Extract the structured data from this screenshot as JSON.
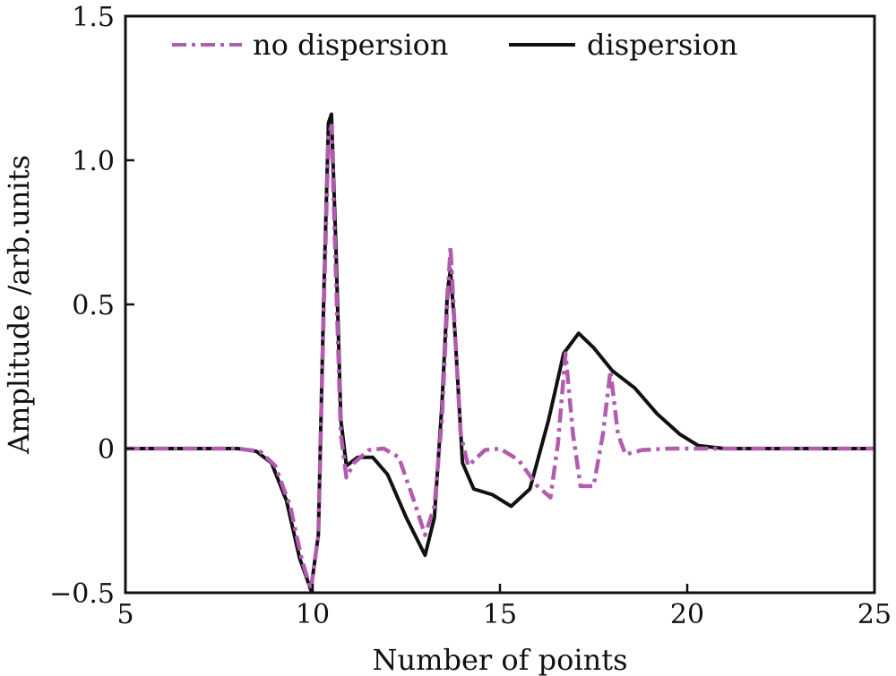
{
  "chart_data": {
    "type": "line",
    "title": "",
    "xlabel": "Number of points",
    "ylabel": "Amplitude /arb.units",
    "xlim": [
      5,
      25
    ],
    "ylim": [
      -0.5,
      1.5
    ],
    "x_ticks": [
      5,
      10,
      15,
      20,
      25
    ],
    "x_tick_labels": [
      "5",
      "10",
      "15",
      "20",
      "25"
    ],
    "y_ticks": [
      -0.5,
      0,
      0.5,
      1.0,
      1.5
    ],
    "y_tick_labels": [
      "−0.5",
      "0",
      "0.5",
      "1.0",
      "1.5"
    ],
    "grid": false,
    "legend_position": "top",
    "series": [
      {
        "name": "no dispersion",
        "color": "#b25cb0",
        "style": "dash-dot",
        "points": [
          [
            5,
            0
          ],
          [
            8.0,
            0
          ],
          [
            8.6,
            -0.01
          ],
          [
            9.0,
            -0.06
          ],
          [
            9.4,
            -0.2
          ],
          [
            9.7,
            -0.38
          ],
          [
            9.95,
            -0.49
          ],
          [
            10.15,
            -0.3
          ],
          [
            10.3,
            0.5
          ],
          [
            10.42,
            1.08
          ],
          [
            10.5,
            1.12
          ],
          [
            10.62,
            0.6
          ],
          [
            10.75,
            0.05
          ],
          [
            10.9,
            -0.1
          ],
          [
            11.1,
            -0.05
          ],
          [
            11.5,
            -0.005
          ],
          [
            11.9,
            0
          ],
          [
            12.3,
            -0.03
          ],
          [
            12.7,
            -0.18
          ],
          [
            13.0,
            -0.3
          ],
          [
            13.25,
            -0.2
          ],
          [
            13.45,
            0.1
          ],
          [
            13.6,
            0.52
          ],
          [
            13.68,
            0.7
          ],
          [
            13.78,
            0.45
          ],
          [
            13.95,
            0.05
          ],
          [
            14.15,
            -0.06
          ],
          [
            14.6,
            -0.005
          ],
          [
            15.0,
            0
          ],
          [
            15.5,
            -0.04
          ],
          [
            16.0,
            -0.13
          ],
          [
            16.35,
            -0.17
          ],
          [
            16.55,
            0.02
          ],
          [
            16.75,
            0.33
          ],
          [
            16.95,
            0.05
          ],
          [
            17.15,
            -0.13
          ],
          [
            17.5,
            -0.13
          ],
          [
            17.75,
            0.05
          ],
          [
            17.95,
            0.27
          ],
          [
            18.15,
            0.05
          ],
          [
            18.35,
            -0.02
          ],
          [
            18.8,
            -0.005
          ],
          [
            19.5,
            0
          ],
          [
            25,
            0
          ]
        ]
      },
      {
        "name": "dispersion",
        "color": "#111111",
        "style": "solid",
        "points": [
          [
            5,
            0
          ],
          [
            8.0,
            0
          ],
          [
            8.5,
            -0.01
          ],
          [
            8.9,
            -0.05
          ],
          [
            9.3,
            -0.18
          ],
          [
            9.65,
            -0.38
          ],
          [
            9.95,
            -0.49
          ],
          [
            10.15,
            -0.3
          ],
          [
            10.3,
            0.55
          ],
          [
            10.42,
            1.13
          ],
          [
            10.5,
            1.16
          ],
          [
            10.62,
            0.7
          ],
          [
            10.75,
            0.1
          ],
          [
            10.9,
            -0.06
          ],
          [
            11.2,
            -0.03
          ],
          [
            11.6,
            -0.03
          ],
          [
            12.0,
            -0.09
          ],
          [
            12.5,
            -0.24
          ],
          [
            13.0,
            -0.37
          ],
          [
            13.25,
            -0.24
          ],
          [
            13.45,
            0.15
          ],
          [
            13.6,
            0.55
          ],
          [
            13.68,
            0.62
          ],
          [
            13.8,
            0.4
          ],
          [
            14.0,
            -0.05
          ],
          [
            14.3,
            -0.14
          ],
          [
            14.8,
            -0.16
          ],
          [
            15.3,
            -0.2
          ],
          [
            15.8,
            -0.14
          ],
          [
            16.3,
            0.1
          ],
          [
            16.7,
            0.33
          ],
          [
            17.1,
            0.4
          ],
          [
            17.5,
            0.35
          ],
          [
            18.0,
            0.27
          ],
          [
            18.6,
            0.21
          ],
          [
            19.2,
            0.12
          ],
          [
            19.8,
            0.05
          ],
          [
            20.3,
            0.01
          ],
          [
            21.0,
            0
          ],
          [
            25,
            0
          ]
        ]
      }
    ]
  }
}
